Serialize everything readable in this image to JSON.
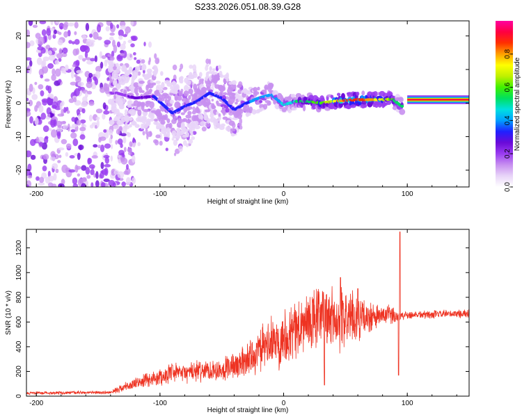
{
  "title": "S233.2026.051.08.39.G28",
  "colors": {
    "snr_line": "#ee3322",
    "axis": "#000000",
    "colormap": [
      "#ffffff",
      "#e8d4f8",
      "#c890f0",
      "#9a3cf0",
      "#6a0ad8",
      "#2020ff",
      "#00a0ff",
      "#00e0e0",
      "#00e060",
      "#40f000",
      "#c0f000",
      "#ffff00",
      "#ffa000",
      "#ff3000",
      "#ff0040",
      "#ff00a0"
    ]
  },
  "chart_data": [
    {
      "type": "heatmap",
      "xlabel": "Height of straight line (km)",
      "ylabel": "Frequency (Hz)",
      "xlim": [
        -208,
        150
      ],
      "ylim": [
        -25,
        24.5
      ],
      "xticks": [
        -200,
        -100,
        0,
        100
      ],
      "xtick_labels": [
        "-200",
        "-100",
        "0",
        "100"
      ],
      "yticks": [
        -20,
        -10,
        0,
        10,
        20
      ],
      "ytick_labels": [
        "-20",
        "-10",
        "0",
        "10",
        "20"
      ],
      "colorbar": {
        "label": "Normalized spectral amplitude",
        "range": [
          0,
          1
        ],
        "ticks": [
          0.0,
          0.2,
          0.4,
          0.6,
          0.8
        ],
        "tick_labels": [
          "0.0",
          "0.2",
          "0.4",
          "0.6",
          "0.8"
        ]
      },
      "ridge": {
        "x": [
          -135,
          -120,
          -105,
          -90,
          -80,
          -70,
          -60,
          -50,
          -40,
          -30,
          -20,
          -10,
          -5,
          0,
          10,
          20,
          30,
          40,
          50,
          60,
          70,
          80,
          88,
          92,
          96,
          100,
          150
        ],
        "freq": [
          3,
          1.5,
          2,
          -3,
          -1,
          0.5,
          3,
          1.5,
          -2,
          0,
          1.5,
          2.5,
          1,
          -0.5,
          0.5,
          0.5,
          0,
          0.5,
          0.8,
          1,
          1,
          1,
          1.2,
          0,
          -1,
          1,
          1
        ],
        "amplitude": [
          0.2,
          0.25,
          0.3,
          0.3,
          0.3,
          0.3,
          0.3,
          0.35,
          0.35,
          0.35,
          0.4,
          0.4,
          0.4,
          0.45,
          0.5,
          0.55,
          0.6,
          0.7,
          0.85,
          0.9,
          0.8,
          0.7,
          0.6,
          0.5,
          0.5,
          0.95,
          0.95
        ]
      },
      "noise_region": {
        "x_range": [
          -208,
          -140
        ],
        "freq_range": [
          -25,
          24.5
        ],
        "amplitude": 0.2
      }
    },
    {
      "type": "line",
      "xlabel": "Height of straight line (km)",
      "ylabel": "SNR (10 * v/v)",
      "xlim": [
        -208,
        150
      ],
      "ylim": [
        0,
        1350
      ],
      "xticks": [
        -200,
        -100,
        0,
        100
      ],
      "xtick_labels": [
        "-200",
        "-100",
        "0",
        "100"
      ],
      "yticks": [
        0,
        200,
        400,
        600,
        800,
        1000,
        1200
      ],
      "ytick_labels": [
        "0",
        "200",
        "400",
        "600",
        "800",
        "1000",
        "1200"
      ],
      "envelope": {
        "x": [
          -208,
          -140,
          -130,
          -110,
          -90,
          -70,
          -50,
          -35,
          -25,
          -15,
          -5,
          5,
          15,
          25,
          35,
          45,
          55,
          65,
          75,
          85,
          90,
          94,
          96,
          100,
          120,
          150
        ],
        "mean": [
          25,
          30,
          70,
          130,
          180,
          200,
          220,
          260,
          330,
          400,
          450,
          520,
          560,
          620,
          650,
          620,
          640,
          620,
          640,
          660,
          650,
          650,
          650,
          660,
          660,
          670
        ],
        "spread": [
          15,
          15,
          40,
          70,
          90,
          100,
          110,
          150,
          180,
          220,
          260,
          280,
          300,
          320,
          330,
          300,
          260,
          180,
          120,
          90,
          80,
          60,
          50,
          40,
          40,
          40
        ]
      },
      "peaks": [
        {
          "x": 33,
          "y": 1050
        },
        {
          "x": 46,
          "y": 960
        },
        {
          "x": 60,
          "y": 870
        },
        {
          "x": 94,
          "y": 1330
        },
        {
          "x": 93,
          "y": 170
        },
        {
          "x": 33,
          "y": 90
        },
        {
          "x": -90,
          "y": 250
        },
        {
          "x": -45,
          "y": 300
        }
      ]
    }
  ]
}
